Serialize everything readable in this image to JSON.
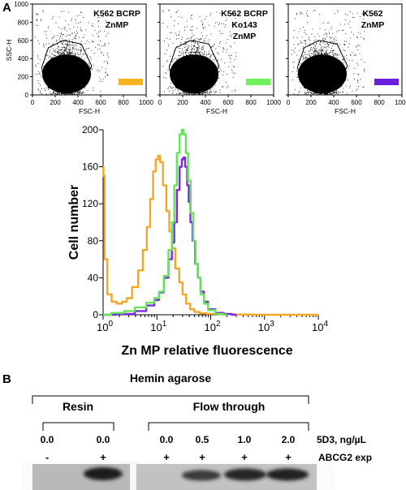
{
  "panel_a": {
    "letter": "A",
    "scatter_plots": [
      {
        "title_lines": [
          "K562 BCRP",
          "ZnMP"
        ],
        "color": "#f7b121"
      },
      {
        "title_lines": [
          "K562 BCRP",
          "Ko143",
          "ZnMP"
        ],
        "color": "#6ef05a"
      },
      {
        "title_lines": [
          "K562",
          "ZnMP"
        ],
        "color": "#6a1fe0"
      }
    ],
    "scatter_axis": {
      "xlabel": "FSC-H",
      "ylabel": "SSC-H",
      "xticks": [
        "0",
        "200",
        "400",
        "600",
        "800",
        "1000"
      ],
      "yticks": [
        "0",
        "200",
        "400",
        "600",
        "800",
        "1000"
      ]
    }
  },
  "chart_data": {
    "type": "line",
    "title": "",
    "xlabel": "Zn MP relative fluorescence",
    "ylabel": "Cell number",
    "xscale": "log",
    "xlim": [
      1,
      10000
    ],
    "ylim": [
      0,
      200
    ],
    "xtick_bases": [
      "10",
      "10",
      "10",
      "10",
      "10"
    ],
    "xtick_exps": [
      "0",
      "1",
      "2",
      "3",
      "4"
    ],
    "yticks": [
      "0",
      "40",
      "80",
      "120",
      "160",
      "200"
    ],
    "series": [
      {
        "color": "#f5a623",
        "x": [
          1,
          1.03,
          1.1,
          1.3,
          1.6,
          2,
          2.5,
          3,
          4,
          5,
          6,
          7,
          8,
          9,
          10,
          11,
          12,
          14,
          16,
          18,
          20,
          24,
          28,
          32,
          38,
          45,
          55,
          70,
          100,
          200,
          500,
          1000,
          10000
        ],
        "y": [
          160,
          150,
          60,
          22,
          14,
          12,
          14,
          18,
          30,
          48,
          70,
          95,
          125,
          155,
          168,
          172,
          165,
          140,
          112,
          90,
          72,
          50,
          35,
          22,
          12,
          6,
          3,
          1.5,
          1,
          0.5,
          0.2,
          0,
          0
        ]
      },
      {
        "color": "#7b2be2",
        "x": [
          1,
          3,
          5,
          8,
          10,
          12,
          15,
          18,
          20,
          22,
          25,
          28,
          30,
          32,
          35,
          38,
          40,
          44,
          48,
          55,
          60,
          70,
          80,
          100,
          150,
          200,
          300
        ],
        "y": [
          0,
          1,
          4,
          10,
          16,
          24,
          40,
          60,
          78,
          100,
          135,
          160,
          168,
          170,
          160,
          140,
          122,
          100,
          80,
          55,
          40,
          25,
          14,
          6,
          2,
          1,
          0
        ]
      },
      {
        "color": "#66e35a",
        "x": [
          1,
          2,
          3,
          5,
          8,
          10,
          12,
          15,
          18,
          20,
          22,
          25,
          28,
          30,
          33,
          36,
          40,
          45,
          50,
          55,
          60,
          70,
          80,
          100,
          150,
          200
        ],
        "y": [
          0,
          2,
          4,
          8,
          13,
          18,
          25,
          42,
          70,
          100,
          140,
          175,
          195,
          200,
          195,
          175,
          145,
          110,
          80,
          55,
          40,
          22,
          12,
          5,
          1,
          0
        ]
      }
    ]
  },
  "panel_b": {
    "letter": "B",
    "group_label": "Hemin agarose",
    "resin_label": "Resin",
    "flow_label": "Flow through",
    "conc_values": [
      "0.0",
      "0.0",
      "0.0",
      "0.5",
      "1.0",
      "2.0"
    ],
    "conc_unit": "5D3, ng/µL",
    "abcg2_signs": [
      "-",
      "+",
      "+",
      "+",
      "+",
      "+"
    ],
    "abcg2_label": "ABCG2 exp"
  }
}
